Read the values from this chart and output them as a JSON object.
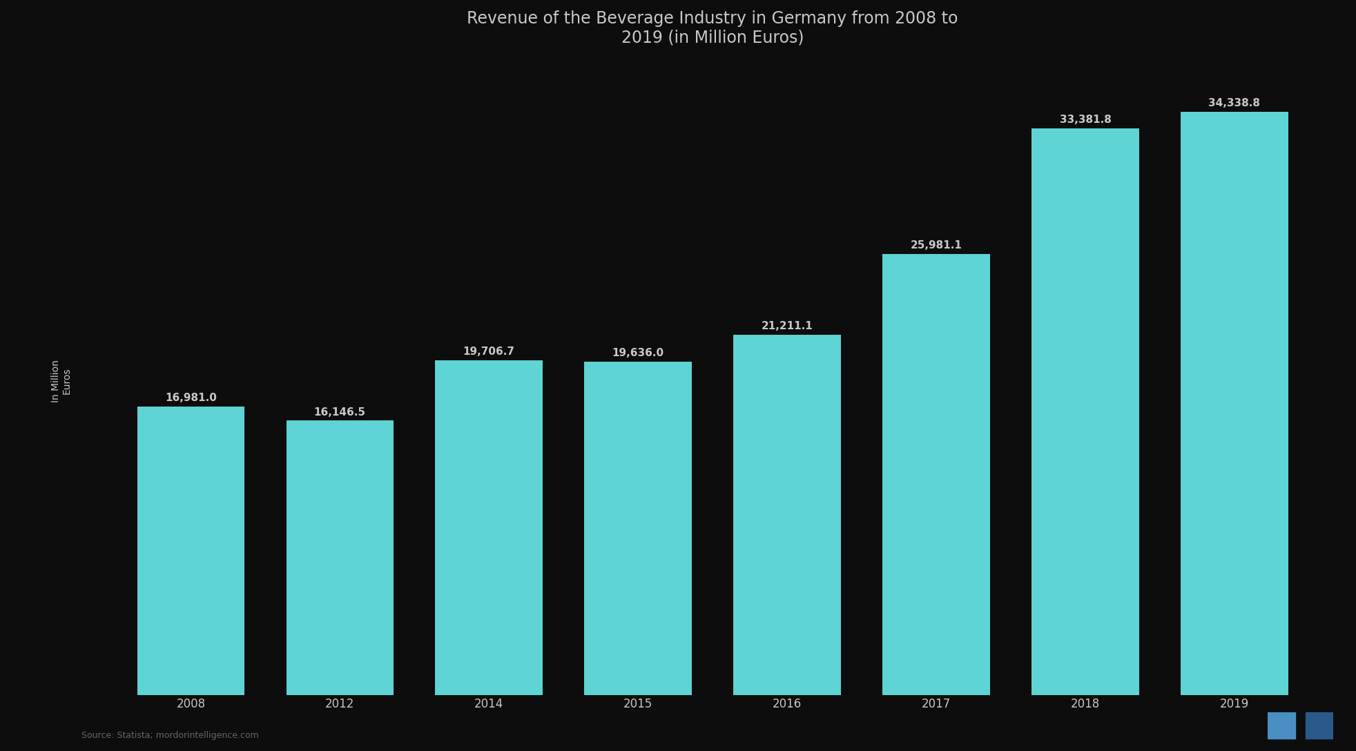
{
  "title": "Revenue of the Beverage Industry in Germany from 2008 to\n2019 (in Million Euros)",
  "categories": [
    "2008",
    "2012",
    "2014",
    "2015",
    "2016",
    "2017",
    "2018",
    "2019"
  ],
  "values": [
    16981.0,
    16146.5,
    19706.7,
    19636.0,
    21211.1,
    25981.1,
    33381.81,
    34338.81
  ],
  "bar_color": "#5ed4d4",
  "background_color": "#0d0d0d",
  "text_color": "#c8c8c8",
  "title_color": "#c8c8c8",
  "annotation_color": "#3a3a3a",
  "ylabel": "In Million\nEuros",
  "ylim": [
    0,
    37000
  ],
  "title_fontsize": 17,
  "label_fontsize": 10,
  "tick_fontsize": 12,
  "bar_label_fontsize": 11,
  "source_text": "Source: Statista; mordorintelligence.com"
}
